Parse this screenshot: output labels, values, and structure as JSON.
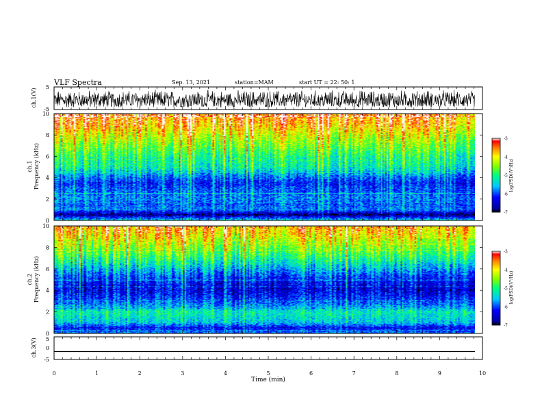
{
  "header": {
    "title": "VLF Spectra",
    "date": "Sep. 13, 2021",
    "station": "station=MAM",
    "start": "start  UT =   22: 50: 1"
  },
  "chart_data": [
    {
      "type": "line",
      "name": "waveform-ch1",
      "ylabel": "ch.1(V)",
      "ylim": [
        -5,
        5
      ],
      "yticks": [
        "5",
        "-5"
      ],
      "xlim": [
        0,
        10
      ],
      "description_values": "dense noise signal between approx -4 and 4 V",
      "amplitude_range": [
        -4,
        4
      ]
    },
    {
      "type": "heatmap",
      "name": "spectrogram-ch1",
      "ylabel_line1": "ch.1",
      "ylabel_line2": "Frequency (kHz)",
      "ylim": [
        0,
        10
      ],
      "yticks": [
        "0",
        "2",
        "4",
        "6",
        "8",
        "10"
      ],
      "xlim": [
        0,
        9.85
      ],
      "colorbar": {
        "label": "log(PSD)(V²/Hz)",
        "range": [
          -7,
          -3
        ],
        "ticks": [
          "-3",
          "-4",
          "-5",
          "-6",
          "-7"
        ]
      },
      "profile_kHz_vs_logPSD": [
        [
          0,
          -5.5
        ],
        [
          0.5,
          -6.8
        ],
        [
          1.0,
          -5.8
        ],
        [
          1.5,
          -6.0
        ],
        [
          2.0,
          -5.8
        ],
        [
          3.0,
          -6.0
        ],
        [
          3.5,
          -6.2
        ],
        [
          4.0,
          -5.9
        ],
        [
          5.0,
          -5.2
        ],
        [
          6.0,
          -5.0
        ],
        [
          7.0,
          -4.6
        ],
        [
          8.0,
          -4.2
        ],
        [
          9.0,
          -3.7
        ],
        [
          10.0,
          -3.4
        ]
      ]
    },
    {
      "type": "heatmap",
      "name": "spectrogram-ch2",
      "ylabel_line1": "ch.2",
      "ylabel_line2": "Frequency (kHz)",
      "ylim": [
        0,
        10
      ],
      "yticks": [
        "0",
        "2",
        "4",
        "6",
        "8",
        "10"
      ],
      "xlim": [
        0,
        9.85
      ],
      "colorbar": {
        "label": "log(PSD)(V²/Hz)",
        "range": [
          -7,
          -3
        ],
        "ticks": [
          "-3",
          "-4",
          "-5",
          "-6",
          "-7"
        ]
      },
      "profile_kHz_vs_logPSD": [
        [
          0,
          -5.8
        ],
        [
          0.5,
          -6.3
        ],
        [
          1.0,
          -5.5
        ],
        [
          2.0,
          -5.2
        ],
        [
          2.5,
          -5.7
        ],
        [
          3.0,
          -6.0
        ],
        [
          4.0,
          -6.4
        ],
        [
          5.0,
          -6.2
        ],
        [
          6.0,
          -5.6
        ],
        [
          7.0,
          -5.0
        ],
        [
          8.0,
          -4.5
        ],
        [
          9.0,
          -4.0
        ],
        [
          10.0,
          -3.6
        ]
      ]
    },
    {
      "type": "line",
      "name": "waveform-ch3",
      "ylabel": "ch.3(V)",
      "ylim": [
        -5,
        5
      ],
      "yticks": [
        "5",
        "0",
        "-5"
      ],
      "xlim": [
        0,
        10
      ],
      "constant_value": -1.5
    }
  ],
  "xaxis": {
    "label": "Time (min)",
    "range": [
      0,
      10
    ],
    "ticks": [
      "0",
      "1",
      "2",
      "3",
      "4",
      "5",
      "6",
      "7",
      "8",
      "9",
      "10"
    ]
  }
}
